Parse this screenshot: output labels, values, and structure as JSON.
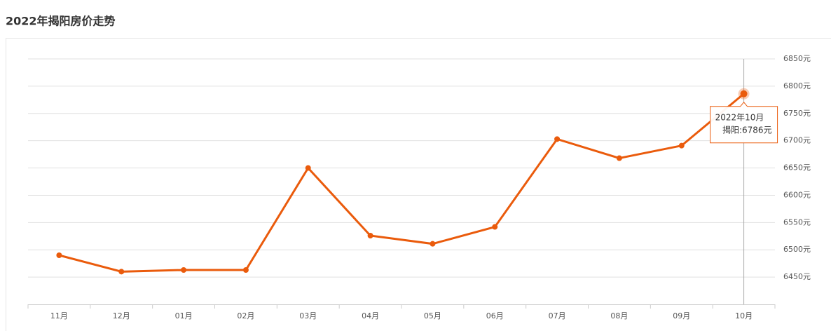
{
  "chart_data": {
    "type": "line",
    "title": "2022年揭阳房价走势",
    "categories": [
      "11月",
      "12月",
      "01月",
      "02月",
      "03月",
      "04月",
      "05月",
      "06月",
      "07月",
      "08月",
      "09月",
      "10月"
    ],
    "series": [
      {
        "name": "揭阳",
        "color": "#ea5b0c",
        "values": [
          6490,
          6460,
          6463,
          6463,
          6650,
          6526,
          6511,
          6542,
          6703,
          6668,
          6691,
          6786
        ]
      }
    ],
    "ylim": [
      6400,
      6850
    ],
    "yticks": [
      {
        "value": 6450,
        "label": "6450元"
      },
      {
        "value": 6500,
        "label": "6500元"
      },
      {
        "value": 6550,
        "label": "6550元"
      },
      {
        "value": 6600,
        "label": "6600元"
      },
      {
        "value": 6650,
        "label": "6650元"
      },
      {
        "value": 6700,
        "label": "6700元"
      },
      {
        "value": 6750,
        "label": "6750元"
      },
      {
        "value": 6800,
        "label": "6800元"
      },
      {
        "value": 6850,
        "label": "6850元"
      }
    ],
    "grid": true,
    "tooltip": {
      "title": "2022年10月",
      "text": "揭阳:6786元"
    }
  }
}
